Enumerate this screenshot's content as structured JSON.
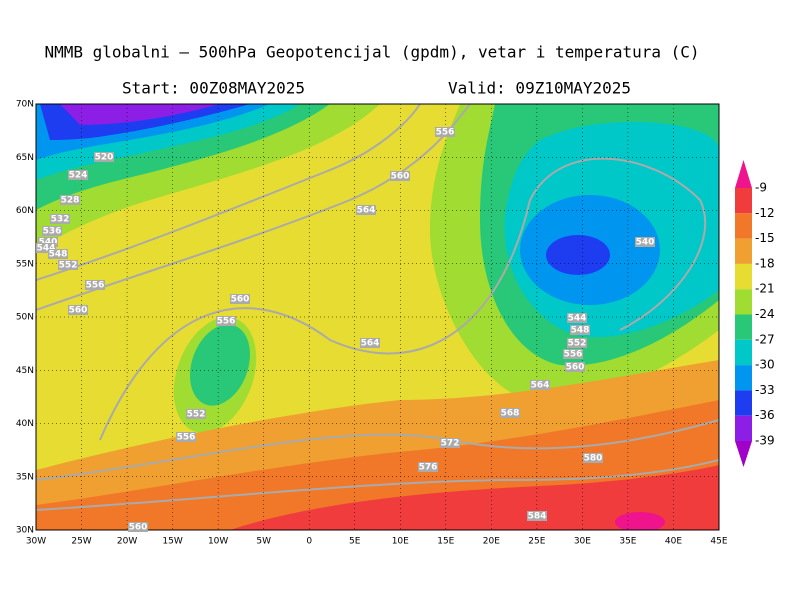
{
  "header": {
    "title": "NMMB globalni — 500hPa Geopotencijal (gpdm), vetar i temperatura (C)",
    "start": "Start: 00Z08MAY2025",
    "valid": "Valid: 09Z10MAY2025"
  },
  "map": {
    "lat_labels": [
      "70N",
      "65N",
      "60N",
      "55N",
      "50N",
      "45N",
      "40N",
      "35N",
      "30N"
    ],
    "lon_labels": [
      "30W",
      "25W",
      "20W",
      "15W",
      "10W",
      "5W",
      "0",
      "5E",
      "10E",
      "15E",
      "20E",
      "25E",
      "30E",
      "35E",
      "40E",
      "45E"
    ],
    "contour_labels": [
      "520",
      "524",
      "528",
      "532",
      "536",
      "540",
      "544",
      "548",
      "552",
      "556",
      "560",
      "556",
      "560",
      "564",
      "560",
      "556",
      "564",
      "552",
      "556",
      "540",
      "544",
      "548",
      "552",
      "556",
      "560",
      "564",
      "568",
      "572",
      "576",
      "580",
      "584",
      "560"
    ]
  },
  "colorbar": {
    "levels": [
      -9,
      -12,
      -15,
      -18,
      -21,
      -24,
      -27,
      -30,
      -33,
      -36,
      -39
    ]
  }
}
